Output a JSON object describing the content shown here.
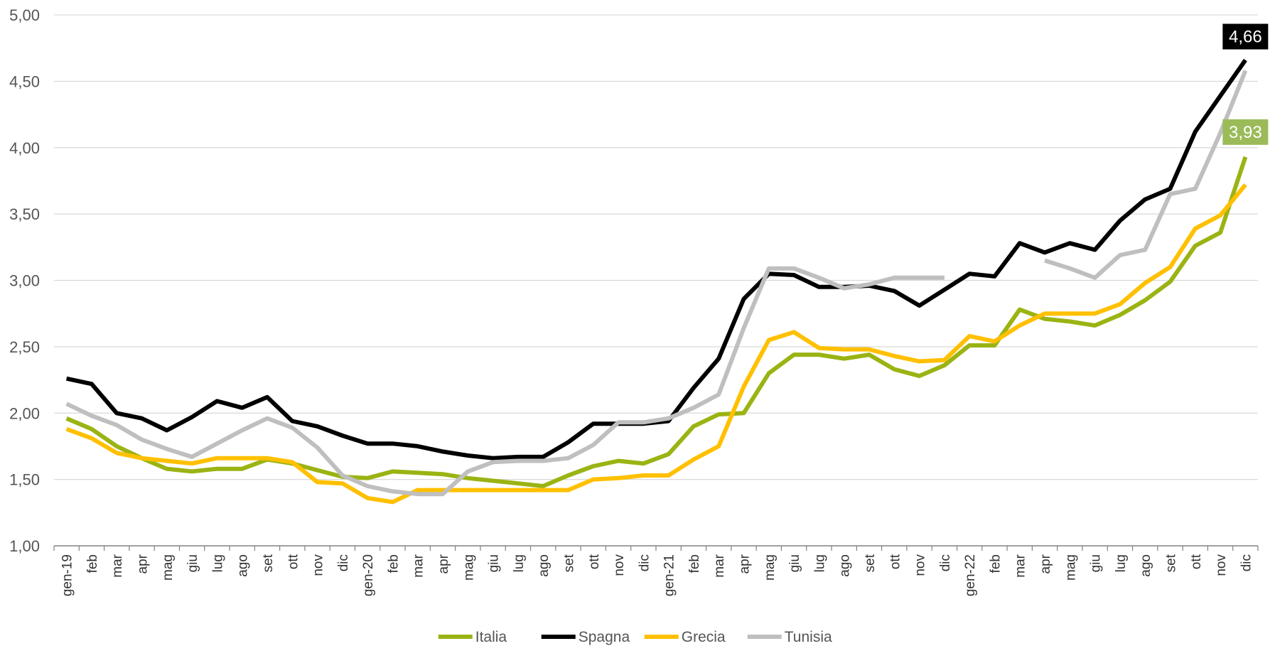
{
  "chart_data": {
    "type": "line",
    "title": "",
    "xlabel": "",
    "ylabel": "",
    "ylim": [
      1.0,
      5.0
    ],
    "yticks": [
      "1,00",
      "1,50",
      "2,00",
      "2,50",
      "3,00",
      "3,50",
      "4,00",
      "4,50",
      "5,00"
    ],
    "grid": "horizontal",
    "legend_position": "bottom",
    "categories": [
      "gen-19",
      "feb",
      "mar",
      "apr",
      "mag",
      "giu",
      "lug",
      "ago",
      "set",
      "ott",
      "nov",
      "dic",
      "gen-20",
      "feb",
      "mar",
      "apr",
      "mag",
      "giu",
      "lug",
      "ago",
      "set",
      "ott",
      "nov",
      "dic",
      "gen-21",
      "feb",
      "mar",
      "apr",
      "mag",
      "giu",
      "lug",
      "ago",
      "set",
      "ott",
      "nov",
      "dic",
      "gen-22",
      "feb",
      "mar",
      "apr",
      "mag",
      "giu",
      "lug",
      "ago",
      "set",
      "ott",
      "nov",
      "dic"
    ],
    "series": [
      {
        "name": "Italia",
        "color": "#9BB313",
        "values": [
          1.96,
          1.88,
          1.75,
          1.66,
          1.58,
          1.56,
          1.58,
          1.58,
          1.65,
          1.62,
          1.57,
          1.52,
          1.51,
          1.56,
          1.55,
          1.54,
          1.51,
          1.49,
          1.47,
          1.45,
          1.53,
          1.6,
          1.64,
          1.62,
          1.69,
          1.9,
          1.99,
          2.0,
          2.3,
          2.44,
          2.44,
          2.41,
          2.44,
          2.33,
          2.28,
          2.36,
          2.51,
          2.51,
          2.78,
          2.71,
          2.69,
          2.66,
          2.74,
          2.85,
          2.99,
          3.26,
          3.36,
          3.93
        ]
      },
      {
        "name": "Spagna",
        "color": "#000000",
        "values": [
          2.26,
          2.22,
          2.0,
          1.96,
          1.87,
          1.97,
          2.09,
          2.04,
          2.12,
          1.94,
          1.9,
          1.83,
          1.77,
          1.77,
          1.75,
          1.71,
          1.68,
          1.66,
          1.67,
          1.67,
          1.78,
          1.92,
          1.92,
          1.92,
          1.94,
          2.19,
          2.41,
          2.86,
          3.05,
          3.04,
          2.95,
          2.95,
          2.96,
          2.92,
          2.81,
          2.93,
          3.05,
          3.03,
          3.28,
          3.21,
          3.28,
          3.23,
          3.45,
          3.61,
          3.69,
          4.12,
          4.39,
          4.66
        ]
      },
      {
        "name": "Grecia",
        "color": "#FFC000",
        "values": [
          1.88,
          1.81,
          1.7,
          1.66,
          1.64,
          1.62,
          1.66,
          1.66,
          1.66,
          1.63,
          1.48,
          1.47,
          1.36,
          1.33,
          1.42,
          1.42,
          1.42,
          1.42,
          1.42,
          1.42,
          1.42,
          1.5,
          1.51,
          1.53,
          1.53,
          1.65,
          1.75,
          2.2,
          2.55,
          2.61,
          2.49,
          2.48,
          2.48,
          2.43,
          2.39,
          2.4,
          2.58,
          2.54,
          2.66,
          2.75,
          2.75,
          2.75,
          2.82,
          2.98,
          3.1,
          3.39,
          3.49,
          3.72
        ]
      },
      {
        "name": "Tunisia",
        "color": "#BFBFBF",
        "values": [
          2.07,
          1.98,
          1.91,
          1.8,
          1.73,
          1.67,
          1.77,
          1.87,
          1.96,
          1.89,
          1.74,
          1.53,
          1.45,
          1.41,
          1.39,
          1.39,
          1.56,
          1.63,
          1.64,
          1.64,
          1.66,
          1.76,
          1.93,
          1.93,
          1.96,
          2.04,
          2.14,
          2.64,
          3.09,
          3.09,
          3.02,
          2.94,
          2.97,
          3.02,
          3.02,
          3.02,
          null,
          null,
          null,
          3.15,
          3.09,
          3.02,
          3.19,
          3.23,
          3.65,
          3.69,
          4.11,
          4.58
        ]
      }
    ],
    "annotations": [
      {
        "text": "4,66",
        "series": "Spagna",
        "bg": "#000000"
      },
      {
        "text": "3,93",
        "series": "Italia",
        "bg": "#9BBB59"
      }
    ]
  }
}
